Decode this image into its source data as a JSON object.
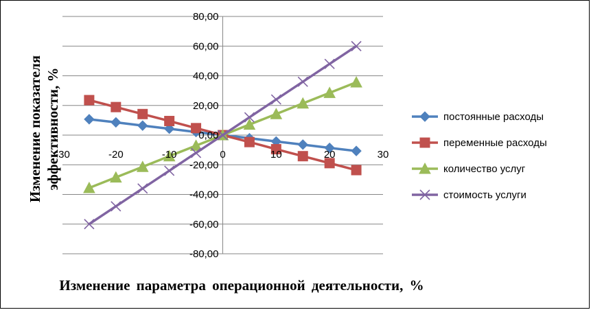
{
  "chart_data": {
    "type": "line",
    "xlabel": "Изменение параметра операционной деятельности, %",
    "ylabel_lines": [
      "Изменение показателя",
      "эффективности, %"
    ],
    "xlim": [
      -30,
      30
    ],
    "ylim": [
      -80,
      80
    ],
    "x_ticks": [
      {
        "value": -30,
        "label": "-30"
      },
      {
        "value": -20,
        "label": "-20"
      },
      {
        "value": -10,
        "label": "-10"
      },
      {
        "value": 0,
        "label": "0"
      },
      {
        "value": 10,
        "label": "10"
      },
      {
        "value": 20,
        "label": "20"
      },
      {
        "value": 30,
        "label": "30"
      }
    ],
    "y_ticks": [
      {
        "value": 80,
        "label": "80,00"
      },
      {
        "value": 60,
        "label": "60,00"
      },
      {
        "value": 40,
        "label": "40,00"
      },
      {
        "value": 20,
        "label": "20,00"
      },
      {
        "value": 0,
        "label": "0,00"
      },
      {
        "value": -20,
        "label": "-20,00"
      },
      {
        "value": -40,
        "label": "-40,00"
      },
      {
        "value": -60,
        "label": "-60,00"
      },
      {
        "value": -80,
        "label": "-80,00"
      }
    ],
    "grid": "horizontal",
    "legend_position": "right",
    "x": [
      -25,
      -20,
      -15,
      -10,
      -5,
      0,
      5,
      10,
      15,
      20,
      25
    ],
    "series": [
      {
        "name": "постоянные расходы",
        "color": "#4F81BD",
        "marker": "diamond",
        "values": [
          10.7,
          8.6,
          6.4,
          4.3,
          2.1,
          0,
          -2.1,
          -4.3,
          -6.4,
          -8.6,
          -10.7
        ]
      },
      {
        "name": "переменные расходы",
        "color": "#C0504D",
        "marker": "square",
        "values": [
          23.6,
          18.9,
          14.2,
          9.5,
          4.7,
          0,
          -4.7,
          -9.5,
          -14.2,
          -18.9,
          -23.6
        ]
      },
      {
        "name": "количество услуг",
        "color": "#9BBB59",
        "marker": "triangle",
        "values": [
          -35.6,
          -28.5,
          -21.4,
          -14.2,
          -7.1,
          0,
          7.1,
          14.2,
          21.4,
          28.5,
          35.6
        ]
      },
      {
        "name": "стоимость услуги",
        "color": "#8064A2",
        "marker": "cross",
        "values": [
          -60,
          -48,
          -36,
          -24,
          -12,
          0,
          12,
          24,
          36,
          48,
          60
        ]
      }
    ]
  }
}
